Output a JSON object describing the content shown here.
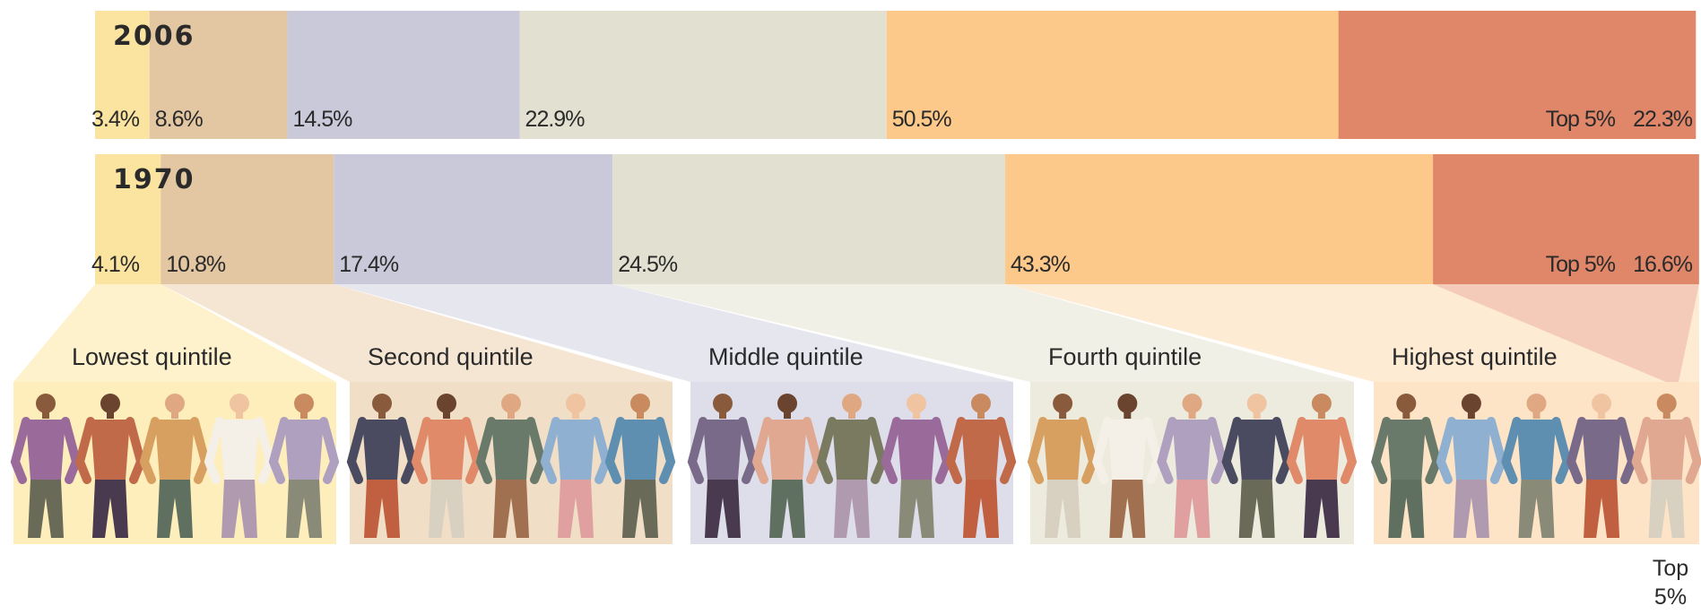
{
  "chart_data": {
    "type": "bar",
    "orientation": "horizontal",
    "stacked": true,
    "categories": [
      "2006",
      "1970"
    ],
    "xlim": [
      0,
      100
    ],
    "series": [
      {
        "name": "Lowest quintile",
        "color": "#fbe3a0",
        "panel_color": "#fdeebc",
        "values": [
          3.4,
          4.1
        ],
        "value_labels": [
          "3.4%",
          "4.1%"
        ]
      },
      {
        "name": "Second quintile",
        "color": "#e3c6a2",
        "panel_color": "#f1dec6",
        "values": [
          8.6,
          10.8
        ],
        "value_labels": [
          "8.6%",
          "10.8%"
        ]
      },
      {
        "name": "Middle quintile",
        "color": "#c9c9da",
        "panel_color": "#dedeea",
        "values": [
          14.5,
          17.4
        ],
        "value_labels": [
          "14.5%",
          "17.4%"
        ]
      },
      {
        "name": "Fourth quintile",
        "color": "#e2e0d0",
        "panel_color": "#ecebde",
        "values": [
          22.9,
          24.5
        ],
        "value_labels": [
          "22.9%",
          "24.5%"
        ]
      },
      {
        "name": "Highest quintile",
        "color": "#fcc98a",
        "panel_color": "#fde4c6",
        "values": [
          50.5,
          43.3
        ],
        "value_labels": [
          "50.5%",
          "43.3%"
        ]
      }
    ],
    "top_share": {
      "name": "Top 5%",
      "color": "#e0876a",
      "panel_color": "#f1c2b0",
      "values": [
        22.3,
        16.6
      ],
      "value_labels": [
        "22.3%",
        "16.6%"
      ]
    }
  }
}
